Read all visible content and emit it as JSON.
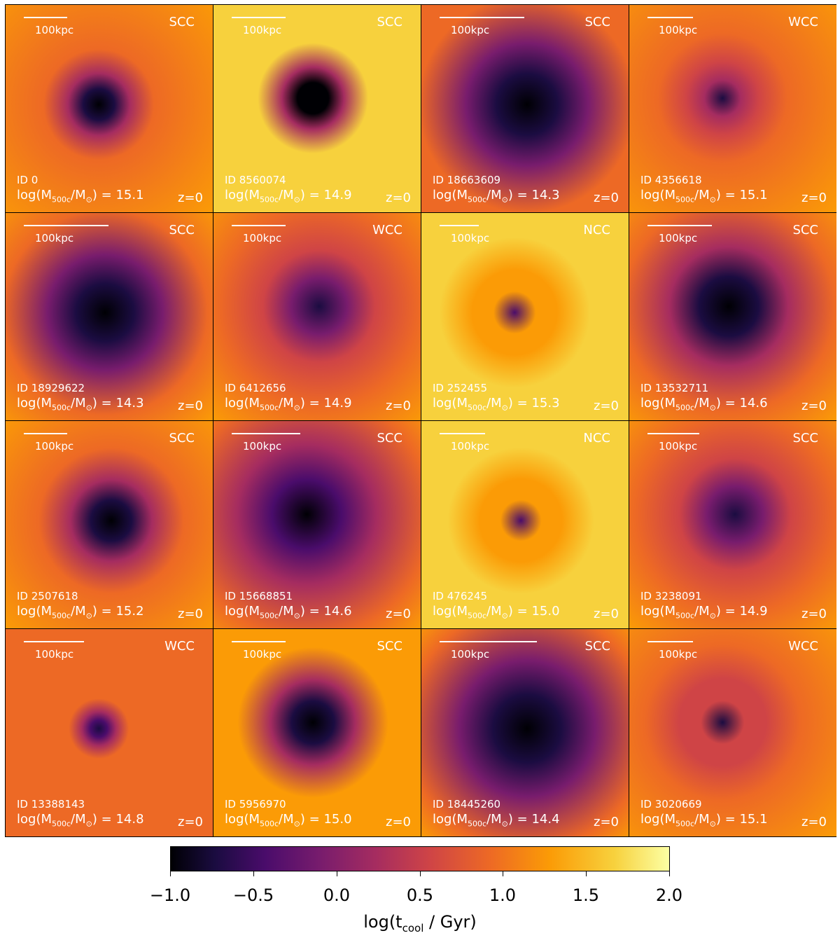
{
  "colormap": [
    "#000004",
    "#1b0c41",
    "#4a0c6b",
    "#781c6d",
    "#a52c60",
    "#cf4446",
    "#ed6925",
    "#fb9b06",
    "#f7d13d",
    "#fcffa4"
  ],
  "mass_label_prefix": "log(M",
  "mass_label_sub": "500c",
  "mass_label_mid": "/M",
  "mass_label_sun": "⊙",
  "mass_label_suffix": ") = ",
  "panels": [
    {
      "id": "ID 0",
      "type": "SCC",
      "mass": "15.1",
      "scale": "100kpc",
      "scalebar_frac": 0.21,
      "redshift": "z=0",
      "core_level": 0.12,
      "env_level": 0.72,
      "core_size": 0.22
    },
    {
      "id": "ID 8560074",
      "type": "SCC",
      "mass": "14.9",
      "scale": "100kpc",
      "scalebar_frac": 0.26,
      "redshift": "z=0",
      "core_level": 0.05,
      "env_level": 0.85,
      "core_size": 0.22
    },
    {
      "id": "ID 18663609",
      "type": "SCC",
      "mass": "14.3",
      "scale": "100kpc",
      "scalebar_frac": 0.41,
      "redshift": "z=0",
      "core_level": 0.06,
      "env_level": 0.62,
      "core_size": 0.45
    },
    {
      "id": "ID 4356618",
      "type": "WCC",
      "mass": "15.1",
      "scale": "100kpc",
      "scalebar_frac": 0.22,
      "redshift": "z=0",
      "core_level": 0.45,
      "env_level": 0.7,
      "core_size": 0.25
    },
    {
      "id": "ID 18929622",
      "type": "SCC",
      "mass": "14.3",
      "scale": "100kpc",
      "scalebar_frac": 0.41,
      "redshift": "z=0",
      "core_level": 0.08,
      "env_level": 0.68,
      "core_size": 0.42
    },
    {
      "id": "ID 6412656",
      "type": "WCC",
      "mass": "14.9",
      "scale": "100kpc",
      "scalebar_frac": 0.26,
      "redshift": "z=0",
      "core_level": 0.35,
      "env_level": 0.68,
      "core_size": 0.4
    },
    {
      "id": "ID 252455",
      "type": "NCC",
      "mass": "15.3",
      "scale": "100kpc",
      "scalebar_frac": 0.19,
      "redshift": "z=0",
      "core_level": 0.74,
      "env_level": 0.84,
      "core_size": 0.3
    },
    {
      "id": "ID 13532711",
      "type": "SCC",
      "mass": "14.6",
      "scale": "100kpc",
      "scalebar_frac": 0.31,
      "redshift": "z=0",
      "core_level": 0.08,
      "env_level": 0.7,
      "core_size": 0.42
    },
    {
      "id": "ID 2507618",
      "type": "SCC",
      "mass": "15.2",
      "scale": "100kpc",
      "scalebar_frac": 0.21,
      "redshift": "z=0",
      "core_level": 0.15,
      "env_level": 0.72,
      "core_size": 0.3
    },
    {
      "id": "ID 15668851",
      "type": "SCC",
      "mass": "14.6",
      "scale": "100kpc",
      "scalebar_frac": 0.33,
      "redshift": "z=0",
      "core_level": 0.18,
      "env_level": 0.7,
      "core_size": 0.48
    },
    {
      "id": "ID 476245",
      "type": "NCC",
      "mass": "15.0",
      "scale": "100kpc",
      "scalebar_frac": 0.22,
      "redshift": "z=0",
      "core_level": 0.8,
      "env_level": 0.86,
      "core_size": 0.3
    },
    {
      "id": "ID 3238091",
      "type": "SCC",
      "mass": "14.9",
      "scale": "100kpc",
      "scalebar_frac": 0.25,
      "redshift": "z=0",
      "core_level": 0.35,
      "env_level": 0.68,
      "core_size": 0.4
    },
    {
      "id": "ID 13388143",
      "type": "WCC",
      "mass": "14.8",
      "scale": "100kpc",
      "scalebar_frac": 0.29,
      "redshift": "z=0",
      "core_level": 0.2,
      "env_level": 0.66,
      "core_size": 0.12
    },
    {
      "id": "ID 5956970",
      "type": "SCC",
      "mass": "15.0",
      "scale": "100kpc",
      "scalebar_frac": 0.26,
      "redshift": "z=0",
      "core_level": 0.1,
      "env_level": 0.76,
      "core_size": 0.3
    },
    {
      "id": "ID 18445260",
      "type": "SCC",
      "mass": "14.4",
      "scale": "100kpc",
      "scalebar_frac": 0.47,
      "redshift": "z=0",
      "core_level": 0.06,
      "env_level": 0.68,
      "core_size": 0.5
    },
    {
      "id": "ID 3020669",
      "type": "WCC",
      "mass": "15.1",
      "scale": "100kpc",
      "scalebar_frac": 0.22,
      "redshift": "z=0",
      "core_level": 0.5,
      "env_level": 0.72,
      "core_size": 0.3
    }
  ],
  "colorbar": {
    "ticks": [
      "−1.0",
      "−0.5",
      "0.0",
      "0.5",
      "1.0",
      "1.5",
      "2.0"
    ],
    "label_prefix": "log(t",
    "label_sub": "cool",
    "label_suffix": " / Gyr)"
  }
}
